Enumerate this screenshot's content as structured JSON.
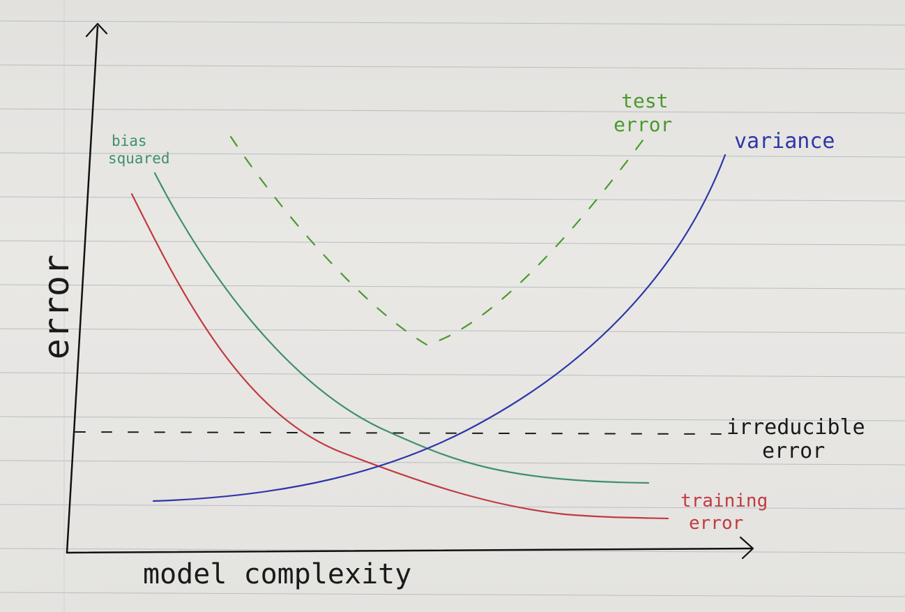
{
  "labels": {
    "y_axis": "error",
    "x_axis": "model complexity",
    "bias_line1": "bias",
    "bias_line2": "squared",
    "test_line1": "test",
    "test_line2": "error",
    "variance": "variance",
    "irreducible_line1": "irreducible",
    "irreducible_line2": "error",
    "training_line1": "training",
    "training_line2": "error"
  },
  "colors": {
    "paper": "#e7e6e3",
    "ruled_line": "#b9bcc3",
    "axis": "#111111",
    "bias": "#3e8f6e",
    "training": "#c03a3f",
    "variance": "#2e36a8",
    "test": "#4a9a2c",
    "irreducible": "#1a1a1a"
  }
}
